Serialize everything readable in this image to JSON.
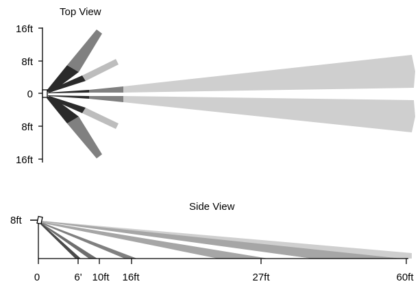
{
  "top_view": {
    "title": "Top View",
    "y_ticks": [
      "16ft",
      "8ft",
      "0",
      "8ft",
      "16ft"
    ]
  },
  "side_view": {
    "title": "Side View",
    "height_label": "8ft",
    "x_ticks": [
      "0",
      "6'",
      "10ft",
      "16ft",
      "27ft",
      "60ft"
    ]
  },
  "colors": {
    "dark": "#2a2a2a",
    "medium": "#808080",
    "mid_light": "#a6a6a6",
    "light": "#cfcfcf",
    "axis": "#000000"
  }
}
